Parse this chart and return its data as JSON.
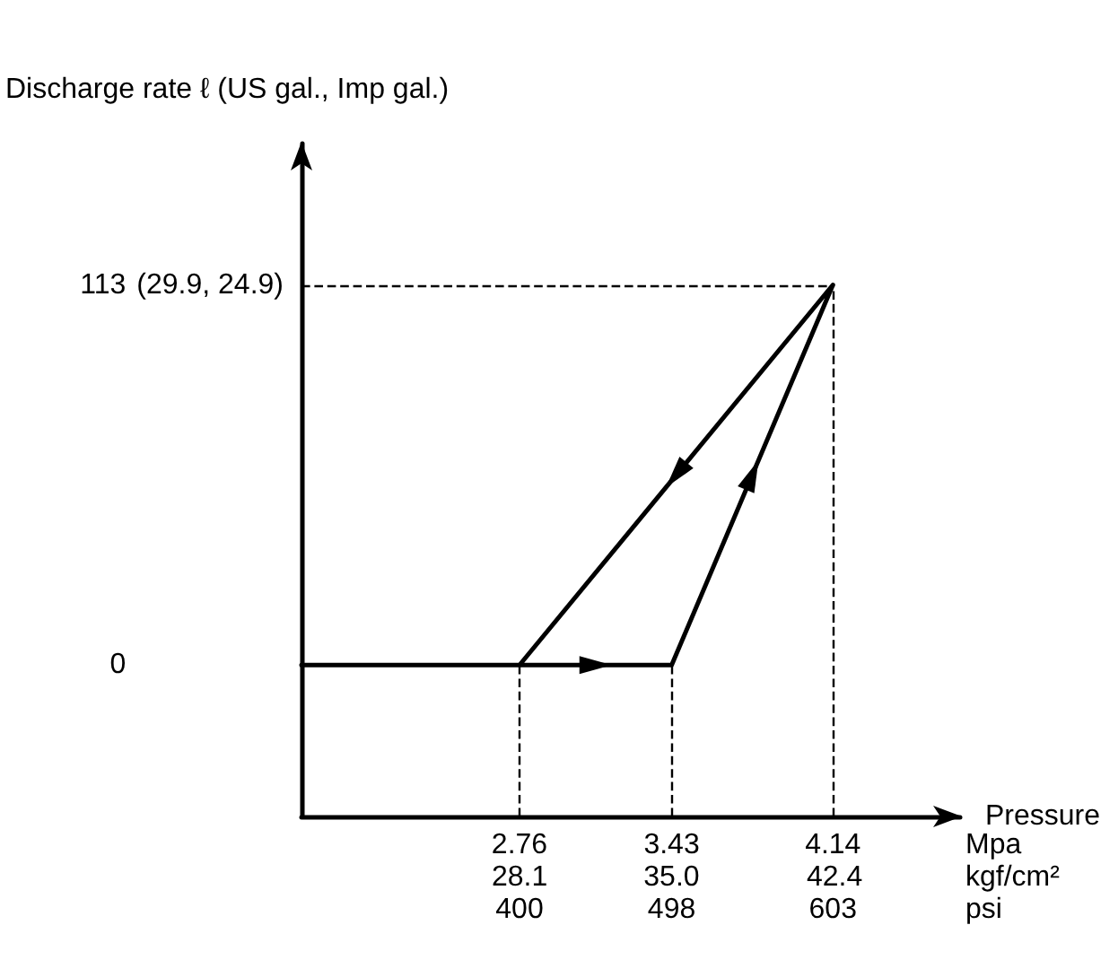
{
  "chart_data": {
    "type": "line",
    "xlabel": "Pressure",
    "ylabel": "Discharge rate ℓ (US gal., Imp gal.)",
    "x2label": "kgf/cm²",
    "x": [
      1.8,
      2.76,
      3.43,
      4.14,
      2.76
    ],
    "series": [
      {
        "color": "#000000",
        "values": [
          0,
          0,
          0,
          113,
          0
        ]
      }
    ],
    "xlim": [
      1.8,
      4.7
    ],
    "ylim": [
      -45,
      155
    ],
    "xticks": [
      2.76,
      3.43,
      4.14
    ],
    "x2lim": [
      18.2,
      48.1
    ],
    "x2ticks": [
      28.1,
      {
        "value": 35,
        "label": "35.0"
      },
      42.4
    ],
    "yticks": [
      0,
      113
    ],
    "annotations": [
      "(29.9, 24.9)",
      "Mpa",
      "400",
      "498",
      "603",
      "psi"
    ],
    "ref_lines": [
      {
        "axis": "x",
        "value": 2.76,
        "line_style": "dashed"
      },
      {
        "axis": "x",
        "value": 3.43,
        "line_style": "dashed"
      },
      {
        "axis": "x",
        "value": 4.14,
        "line_style": "dashed"
      },
      {
        "axis": "y",
        "value": 113,
        "line_style": "dashed"
      }
    ],
    "marker": "none",
    "line_style": "solid",
    "grid": false
  }
}
